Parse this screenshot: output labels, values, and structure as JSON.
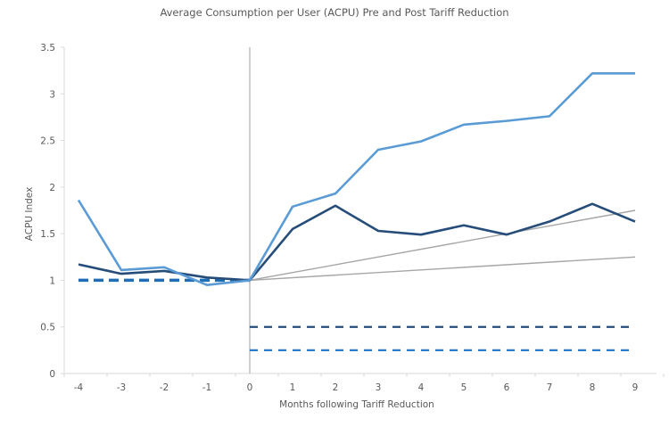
{
  "chart_data": {
    "type": "line",
    "title": "Average Consumption per User (ACPU) Pre and Post Tariff Reduction",
    "xlabel": "Months following Tariff Reduction",
    "ylabel": "ACPU Index",
    "x": [
      -4,
      -3,
      -2,
      -1,
      0,
      1,
      2,
      3,
      4,
      5,
      6,
      7,
      8,
      9
    ],
    "x_tick_labels": [
      "-4",
      "-3",
      "-2",
      "-1",
      "0",
      "1",
      "2",
      "3",
      "4",
      "5",
      "6",
      "7",
      "8",
      "9"
    ],
    "ylim": [
      0,
      3.5
    ],
    "y_ticks": [
      0,
      0.5,
      1,
      1.5,
      2,
      2.5,
      3,
      3.5
    ],
    "y_tick_labels": [
      "0",
      "0.5",
      "1",
      "1.5",
      "2",
      "2.5",
      "3",
      "3.5"
    ],
    "grid": false,
    "legend": "none",
    "series": [
      {
        "name": "ACPU series A (light blue)",
        "color": "#5B9BD5",
        "style": "solid",
        "x": [
          -4,
          -3,
          -2,
          -1,
          0,
          1,
          2,
          3,
          4,
          5,
          6,
          7,
          8,
          9
        ],
        "values": [
          1.86,
          1.11,
          1.14,
          0.95,
          1.0,
          1.79,
          1.93,
          2.4,
          2.49,
          2.67,
          2.71,
          2.76,
          3.22,
          3.22
        ]
      },
      {
        "name": "ACPU series B (dark blue)",
        "color": "#264D7A",
        "style": "solid",
        "x": [
          -4,
          -3,
          -2,
          -1,
          0,
          1,
          2,
          3,
          4,
          5,
          6,
          7,
          8,
          9
        ],
        "values": [
          1.17,
          1.07,
          1.1,
          1.03,
          1.0,
          1.55,
          1.8,
          1.53,
          1.49,
          1.59,
          1.49,
          1.63,
          1.82,
          1.63
        ]
      },
      {
        "name": "Trend line upper (grey)",
        "color": "#A6A6A6",
        "style": "solid-thin",
        "x": [
          0,
          9
        ],
        "values": [
          1.0,
          1.75
        ]
      },
      {
        "name": "Trend line lower (grey)",
        "color": "#A6A6A6",
        "style": "solid-thin",
        "x": [
          0,
          9
        ],
        "values": [
          1.0,
          1.25
        ]
      },
      {
        "name": "Pre-reduction baseline (dashed)",
        "color": "#1F6DB5",
        "style": "dashed-thick",
        "x": [
          -4,
          0
        ],
        "values": [
          1.0,
          1.0
        ]
      },
      {
        "name": "Reference 0.5 (dashed navy)",
        "color": "#264D7A",
        "style": "dashed",
        "x": [
          0,
          9
        ],
        "values": [
          0.5,
          0.5
        ]
      },
      {
        "name": "Reference 0.25 (dashed blue)",
        "color": "#2E7BC8",
        "style": "dashed",
        "x": [
          0,
          9
        ],
        "values": [
          0.25,
          0.25
        ]
      }
    ],
    "annotations": [
      {
        "type": "vertical-line",
        "x": 0,
        "color": "#BFBFBF",
        "from": 0,
        "to": 3.5
      }
    ],
    "axis_color": "#D9D9D9",
    "text_color": "#595959"
  }
}
